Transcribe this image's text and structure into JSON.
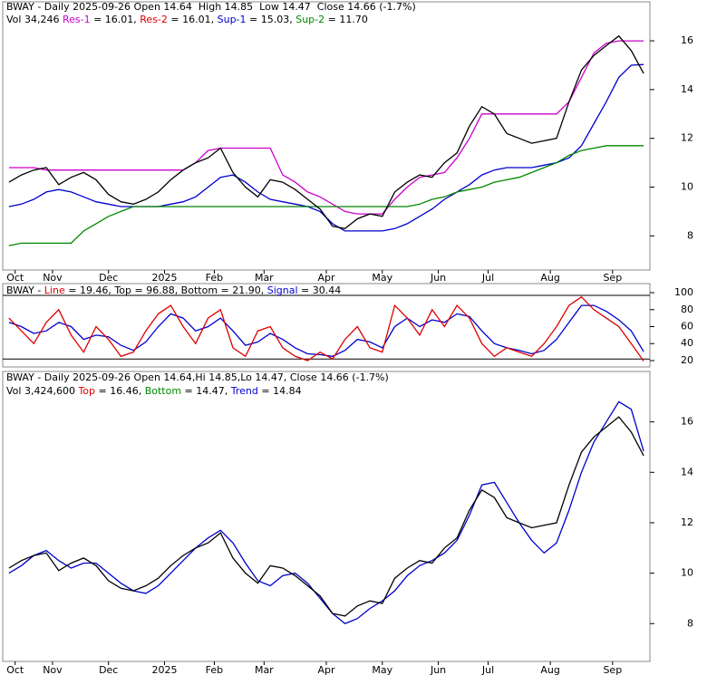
{
  "chart_data": [
    {
      "type": "line",
      "header": [
        [
          {
            "text": "BWAY - Daily 2025-09-26 Open 14.64  High 14.85  Low 14.47  Close 14.66 (-1.7%)",
            "color": "#000000"
          }
        ],
        [
          {
            "text": "Vol 34,246 ",
            "color": "#000000"
          },
          {
            "text": "Res-1",
            "color": "#cc00cc"
          },
          {
            "text": " = 16.01, ",
            "color": "#000000"
          },
          {
            "text": "Res-2",
            "color": "#dd0000"
          },
          {
            "text": " = 16.01, ",
            "color": "#000000"
          },
          {
            "text": "Sup-1",
            "color": "#0000cc"
          },
          {
            "text": " = 15.03, ",
            "color": "#000000"
          },
          {
            "text": "Sup-2",
            "color": "#008800"
          },
          {
            "text": " = 11.70",
            "color": "#000000"
          }
        ]
      ],
      "xticks": [
        {
          "value": 0.5,
          "label": "Oct"
        },
        {
          "value": 3.5,
          "label": "Nov"
        },
        {
          "value": 8,
          "label": "Dec"
        },
        {
          "value": 12.5,
          "label": "2025"
        },
        {
          "value": 16.5,
          "label": "Feb"
        },
        {
          "value": 20.5,
          "label": "Mar"
        },
        {
          "value": 25.5,
          "label": "Apr"
        },
        {
          "value": 30,
          "label": "May"
        },
        {
          "value": 34.5,
          "label": "Jun"
        },
        {
          "value": 38.5,
          "label": "Jul"
        },
        {
          "value": 43.5,
          "label": "Aug"
        },
        {
          "value": 48.5,
          "label": "Sep"
        }
      ],
      "xlim": [
        0,
        52
      ],
      "ylim": [
        6.6,
        17.6
      ],
      "yticks": [
        8,
        10,
        12,
        14,
        16
      ],
      "series": [
        {
          "color": "#cc00cc",
          "values": [
            10.8,
            10.8,
            10.8,
            10.7,
            10.7,
            10.7,
            10.7,
            10.7,
            10.7,
            10.7,
            10.7,
            10.7,
            10.7,
            10.7,
            10.7,
            11.0,
            11.5,
            11.6,
            11.6,
            11.6,
            11.6,
            11.6,
            10.5,
            10.2,
            9.8,
            9.6,
            9.3,
            9.0,
            8.9,
            8.9,
            8.9,
            9.5,
            10.0,
            10.4,
            10.5,
            10.6,
            11.2,
            12.0,
            13.0,
            13.0,
            13.0,
            13.0,
            13.0,
            13.0,
            13.0,
            13.5,
            14.5,
            15.5,
            15.9,
            16.0,
            16.0,
            16.0
          ]
        },
        {
          "color": "#0000cc",
          "values": [
            9.2,
            9.3,
            9.5,
            9.8,
            9.9,
            9.8,
            9.6,
            9.4,
            9.3,
            9.2,
            9.2,
            9.2,
            9.2,
            9.3,
            9.4,
            9.6,
            10.0,
            10.4,
            10.5,
            10.2,
            9.8,
            9.5,
            9.4,
            9.3,
            9.2,
            9.0,
            8.5,
            8.2,
            8.2,
            8.2,
            8.2,
            8.3,
            8.5,
            8.8,
            9.1,
            9.5,
            9.8,
            10.1,
            10.5,
            10.7,
            10.8,
            10.8,
            10.8,
            10.9,
            11.0,
            11.2,
            11.7,
            12.6,
            13.5,
            14.5,
            15.0,
            15.03
          ]
        },
        {
          "color": "#008800",
          "values": [
            7.6,
            7.7,
            7.7,
            7.7,
            7.7,
            7.7,
            8.2,
            8.5,
            8.8,
            9.0,
            9.2,
            9.2,
            9.2,
            9.2,
            9.2,
            9.2,
            9.2,
            9.2,
            9.2,
            9.2,
            9.2,
            9.2,
            9.2,
            9.2,
            9.2,
            9.2,
            9.2,
            9.2,
            9.2,
            9.2,
            9.2,
            9.2,
            9.2,
            9.3,
            9.5,
            9.6,
            9.8,
            9.9,
            10.0,
            10.2,
            10.3,
            10.4,
            10.6,
            10.8,
            11.0,
            11.3,
            11.5,
            11.6,
            11.7,
            11.7,
            11.7,
            11.7
          ]
        },
        {
          "color": "#000000",
          "values": [
            10.2,
            10.5,
            10.7,
            10.8,
            10.1,
            10.4,
            10.6,
            10.3,
            9.7,
            9.4,
            9.3,
            9.5,
            9.8,
            10.3,
            10.7,
            11.0,
            11.2,
            11.6,
            10.6,
            10.0,
            9.6,
            10.3,
            10.2,
            9.9,
            9.5,
            9.1,
            8.4,
            8.3,
            8.7,
            8.9,
            8.8,
            9.8,
            10.2,
            10.5,
            10.4,
            11.0,
            11.4,
            12.5,
            13.3,
            13.0,
            12.2,
            12.0,
            11.8,
            11.9,
            12.0,
            13.5,
            14.8,
            15.4,
            15.8,
            16.2,
            15.6,
            14.66
          ]
        }
      ]
    },
    {
      "type": "line",
      "header": [
        [
          {
            "text": "BWAY - ",
            "color": "#000000"
          },
          {
            "text": "Line",
            "color": "#dd0000"
          },
          {
            "text": " = 19.46, Top = 96.88, Bottom = 21.90, ",
            "color": "#000000"
          },
          {
            "text": "Signal",
            "color": "#0000cc"
          },
          {
            "text": " = 30.44",
            "color": "#000000"
          }
        ]
      ],
      "xlim": [
        0,
        52
      ],
      "ylim": [
        12.5,
        110.7
      ],
      "yticks": [
        20,
        40,
        60,
        80,
        100
      ],
      "top": 96.88,
      "bottom": 21.9,
      "series": [
        {
          "color": "#0000cc",
          "values": [
            65,
            60,
            52,
            55,
            65,
            60,
            45,
            50,
            48,
            38,
            32,
            42,
            60,
            75,
            70,
            55,
            60,
            70,
            55,
            38,
            42,
            52,
            45,
            35,
            28,
            27,
            25,
            32,
            45,
            42,
            35,
            60,
            70,
            60,
            68,
            65,
            75,
            72,
            55,
            40,
            35,
            32,
            28,
            32,
            45,
            65,
            85,
            85,
            78,
            68,
            55,
            30.44
          ]
        },
        {
          "color": "#dd0000",
          "values": [
            70,
            55,
            40,
            65,
            80,
            50,
            30,
            60,
            45,
            25,
            30,
            55,
            75,
            85,
            60,
            40,
            70,
            80,
            35,
            25,
            55,
            60,
            35,
            25,
            20,
            30,
            22,
            45,
            60,
            35,
            30,
            85,
            70,
            50,
            80,
            60,
            85,
            70,
            40,
            25,
            35,
            30,
            25,
            40,
            60,
            85,
            95,
            80,
            70,
            60,
            40,
            19.46
          ]
        }
      ]
    },
    {
      "type": "line",
      "header": [
        [
          {
            "text": "BWAY - Daily 2025-09-26 Open 14.64,Hi 14.85,Lo 14.47, Close 14.66 (-1.7%)",
            "color": "#000000"
          }
        ],
        [
          {
            "text": "Vol 3,424,600 ",
            "color": "#000000"
          },
          {
            "text": "Top",
            "color": "#dd0000"
          },
          {
            "text": " = 16.46, ",
            "color": "#000000"
          },
          {
            "text": "Bottom",
            "color": "#008800"
          },
          {
            "text": " = 14.47, ",
            "color": "#000000"
          },
          {
            "text": "Trend",
            "color": "#0000cc"
          },
          {
            "text": " = 14.84",
            "color": "#000000"
          }
        ]
      ],
      "xticks": [
        {
          "value": 0.5,
          "label": "Oct"
        },
        {
          "value": 3.5,
          "label": "Nov"
        },
        {
          "value": 8,
          "label": "Dec"
        },
        {
          "value": 12.5,
          "label": "2025"
        },
        {
          "value": 16.5,
          "label": "Feb"
        },
        {
          "value": 20.5,
          "label": "Mar"
        },
        {
          "value": 25.5,
          "label": "Apr"
        },
        {
          "value": 30,
          "label": "May"
        },
        {
          "value": 34.5,
          "label": "Jun"
        },
        {
          "value": 38.5,
          "label": "Jul"
        },
        {
          "value": 43.5,
          "label": "Aug"
        },
        {
          "value": 48.5,
          "label": "Sep"
        }
      ],
      "xlim": [
        0,
        52
      ],
      "ylim": [
        6.5,
        18
      ],
      "yticks": [
        8,
        10,
        12,
        14,
        16
      ],
      "series": [
        {
          "color": "#0000cc",
          "values": [
            10.0,
            10.3,
            10.7,
            10.9,
            10.5,
            10.2,
            10.4,
            10.4,
            10.0,
            9.6,
            9.3,
            9.2,
            9.5,
            10.0,
            10.5,
            11.0,
            11.4,
            11.7,
            11.2,
            10.4,
            9.7,
            9.5,
            9.9,
            10.0,
            9.6,
            9.0,
            8.4,
            8.0,
            8.2,
            8.6,
            8.9,
            9.3,
            9.9,
            10.3,
            10.5,
            10.8,
            11.3,
            12.3,
            13.5,
            13.6,
            12.8,
            12.0,
            11.3,
            10.8,
            11.2,
            12.5,
            14.0,
            15.2,
            16.0,
            16.8,
            16.5,
            14.84
          ]
        },
        {
          "color": "#000000",
          "values": [
            10.2,
            10.5,
            10.7,
            10.8,
            10.1,
            10.4,
            10.6,
            10.3,
            9.7,
            9.4,
            9.3,
            9.5,
            9.8,
            10.3,
            10.7,
            11.0,
            11.2,
            11.6,
            10.6,
            10.0,
            9.6,
            10.3,
            10.2,
            9.9,
            9.5,
            9.1,
            8.4,
            8.3,
            8.7,
            8.9,
            8.8,
            9.8,
            10.2,
            10.5,
            10.4,
            11.0,
            11.4,
            12.5,
            13.3,
            13.0,
            12.2,
            12.0,
            11.8,
            11.9,
            12.0,
            13.5,
            14.8,
            15.4,
            15.8,
            16.2,
            15.6,
            14.66
          ]
        }
      ]
    }
  ]
}
